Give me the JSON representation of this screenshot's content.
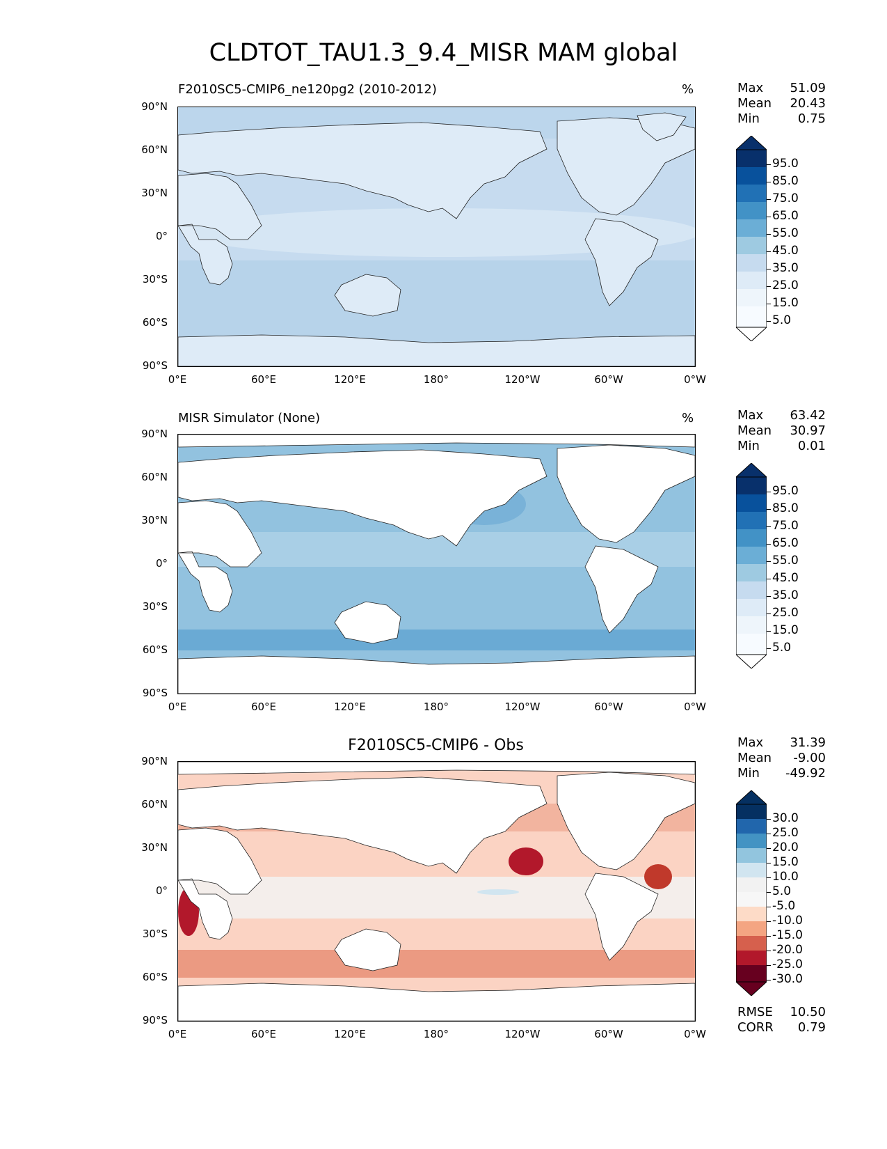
{
  "figure": {
    "title": "CLDTOT_TAU1.3_9.4_MISR MAM global"
  },
  "axes": {
    "lat_ticks": [
      "90°N",
      "60°N",
      "30°N",
      "0°",
      "30°S",
      "60°S",
      "90°S"
    ],
    "lon_ticks": [
      "0°E",
      "60°E",
      "120°E",
      "180°",
      "120°W",
      "60°W",
      "0°W"
    ]
  },
  "panels": [
    {
      "title": "F2010SC5-CMIP6_ne120pg2 (2010-2012)",
      "units": "%",
      "stats": {
        "max_label": "Max",
        "max": "51.09",
        "mean_label": "Mean",
        "mean": "20.43",
        "min_label": "Min",
        "min": "0.75"
      },
      "colorbar_labels": [
        "95.0",
        "85.0",
        "75.0",
        "65.0",
        "55.0",
        "45.0",
        "35.0",
        "25.0",
        "15.0",
        "5.0"
      ]
    },
    {
      "title": "MISR Simulator (None)",
      "units": "%",
      "stats": {
        "max_label": "Max",
        "max": "63.42",
        "mean_label": "Mean",
        "mean": "30.97",
        "min_label": "Min",
        "min": "0.01"
      },
      "colorbar_labels": [
        "95.0",
        "85.0",
        "75.0",
        "65.0",
        "55.0",
        "45.0",
        "35.0",
        "25.0",
        "15.0",
        "5.0"
      ]
    },
    {
      "title": "F2010SC5-CMIP6 - Obs",
      "units": "",
      "stats": {
        "max_label": "Max",
        "max": "31.39",
        "mean_label": "Mean",
        "mean": "-9.00",
        "min_label": "Min",
        "min": "-49.92"
      },
      "colorbar_labels": [
        "30.0",
        "25.0",
        "20.0",
        "15.0",
        "10.0",
        "5.0",
        "-5.0",
        "-10.0",
        "-15.0",
        "-20.0",
        "-25.0",
        "-30.0"
      ],
      "metrics": {
        "rmse_label": "RMSE",
        "rmse": "10.50",
        "corr_label": "CORR",
        "corr": "0.79"
      }
    }
  ],
  "colors": {
    "blues": [
      "#08306b",
      "#08519c",
      "#2171b5",
      "#4292c6",
      "#6baed6",
      "#9ecae1",
      "#c6dbef",
      "#deebf7",
      "#f7fbff"
    ],
    "diff": [
      "#053061",
      "#2166ac",
      "#4393c3",
      "#92c5de",
      "#d1e5f0",
      "#f7f7f7",
      "#fddbc7",
      "#f4a582",
      "#d6604d",
      "#b2182b",
      "#67001f"
    ],
    "model_ocean": "#bcd6ec",
    "model_land": "#deebf7",
    "obs_ocean": "#92c2df",
    "diff_ocean": "#fbd3c3"
  }
}
